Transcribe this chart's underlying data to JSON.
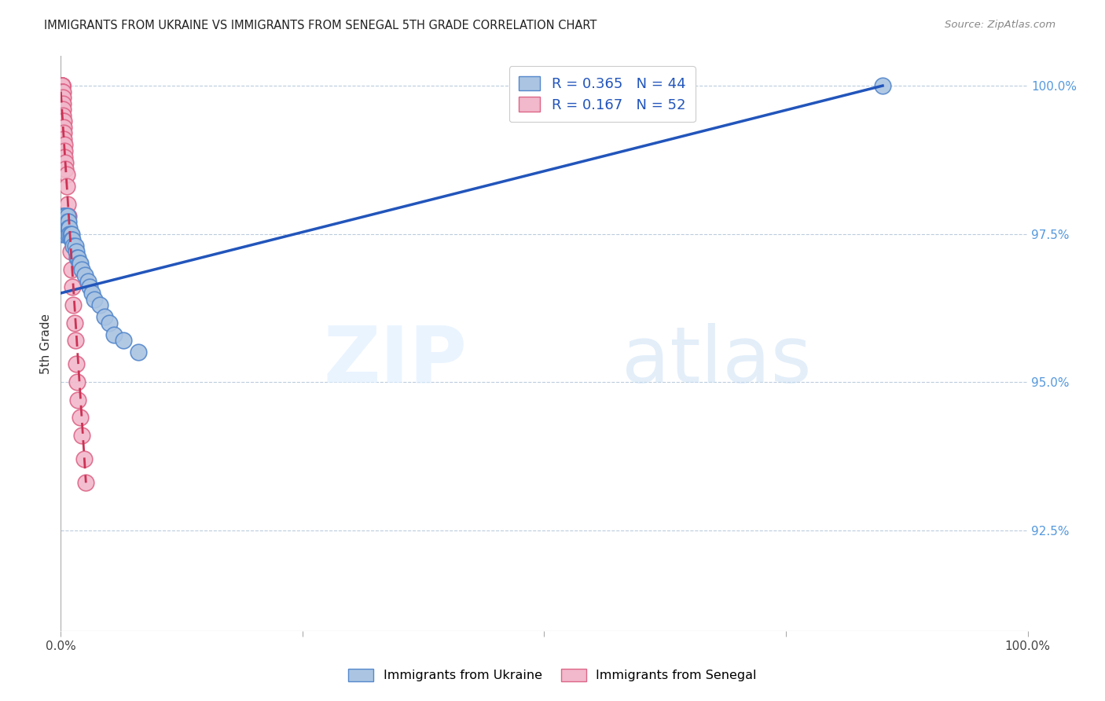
{
  "title": "IMMIGRANTS FROM UKRAINE VS IMMIGRANTS FROM SENEGAL 5TH GRADE CORRELATION CHART",
  "source": "Source: ZipAtlas.com",
  "ylabel": "5th Grade",
  "ylabel_right_ticks": [
    "100.0%",
    "97.5%",
    "95.0%",
    "92.5%"
  ],
  "ylabel_right_values": [
    1.0,
    0.975,
    0.95,
    0.925
  ],
  "ukraine_R": 0.365,
  "ukraine_N": 44,
  "senegal_R": 0.167,
  "senegal_N": 52,
  "ukraine_color": "#aac4e2",
  "ukraine_edge_color": "#5588cc",
  "senegal_color": "#f2b8cb",
  "senegal_edge_color": "#dd6688",
  "ukraine_line_color": "#2255bb",
  "senegal_line_color": "#cc3355",
  "background_color": "#ffffff",
  "watermark_zip": "ZIP",
  "watermark_atlas": "atlas",
  "ukraine_x": [
    0.001,
    0.002,
    0.003,
    0.003,
    0.003,
    0.004,
    0.004,
    0.004,
    0.005,
    0.005,
    0.005,
    0.006,
    0.007,
    0.007,
    0.007,
    0.007,
    0.008,
    0.008,
    0.009,
    0.009,
    0.01,
    0.011,
    0.011,
    0.012,
    0.013,
    0.015,
    0.016,
    0.017,
    0.018,
    0.019,
    0.02,
    0.022,
    0.025,
    0.028,
    0.03,
    0.032,
    0.035,
    0.04,
    0.045,
    0.05,
    0.055,
    0.065,
    0.08,
    0.85
  ],
  "ukraine_y": [
    0.975,
    0.978,
    0.978,
    0.977,
    0.976,
    0.978,
    0.977,
    0.976,
    0.978,
    0.977,
    0.975,
    0.976,
    0.978,
    0.977,
    0.976,
    0.975,
    0.977,
    0.976,
    0.976,
    0.975,
    0.975,
    0.975,
    0.974,
    0.974,
    0.973,
    0.973,
    0.972,
    0.971,
    0.971,
    0.97,
    0.97,
    0.969,
    0.968,
    0.967,
    0.966,
    0.965,
    0.964,
    0.963,
    0.961,
    0.96,
    0.958,
    0.957,
    0.955,
    1.0
  ],
  "senegal_x": [
    0.001,
    0.001,
    0.001,
    0.001,
    0.001,
    0.001,
    0.001,
    0.001,
    0.001,
    0.001,
    0.001,
    0.001,
    0.001,
    0.001,
    0.001,
    0.001,
    0.001,
    0.002,
    0.002,
    0.002,
    0.002,
    0.002,
    0.002,
    0.002,
    0.002,
    0.003,
    0.003,
    0.003,
    0.003,
    0.004,
    0.004,
    0.004,
    0.005,
    0.005,
    0.006,
    0.006,
    0.007,
    0.008,
    0.009,
    0.01,
    0.011,
    0.012,
    0.013,
    0.014,
    0.015,
    0.016,
    0.017,
    0.018,
    0.02,
    0.022,
    0.024,
    0.026
  ],
  "senegal_y": [
    1.0,
    1.0,
    1.0,
    1.0,
    1.0,
    1.0,
    0.999,
    0.999,
    0.999,
    0.998,
    0.998,
    0.997,
    0.997,
    0.996,
    0.996,
    0.995,
    0.994,
    0.999,
    0.998,
    0.997,
    0.996,
    0.995,
    0.994,
    0.993,
    0.992,
    0.994,
    0.993,
    0.992,
    0.991,
    0.99,
    0.989,
    0.988,
    0.987,
    0.986,
    0.985,
    0.983,
    0.98,
    0.978,
    0.975,
    0.972,
    0.969,
    0.966,
    0.963,
    0.96,
    0.957,
    0.953,
    0.95,
    0.947,
    0.944,
    0.941,
    0.937,
    0.933
  ],
  "ukraine_line_x0": 0.0,
  "ukraine_line_x1": 0.85,
  "ukraine_line_y0": 0.965,
  "ukraine_line_y1": 1.0,
  "senegal_line_x0": 0.0,
  "senegal_line_x1": 0.026,
  "senegal_line_y0": 0.999,
  "senegal_line_y1": 0.933,
  "xmin": 0.0,
  "xmax": 1.0,
  "ymin": 0.908,
  "ymax": 1.005
}
